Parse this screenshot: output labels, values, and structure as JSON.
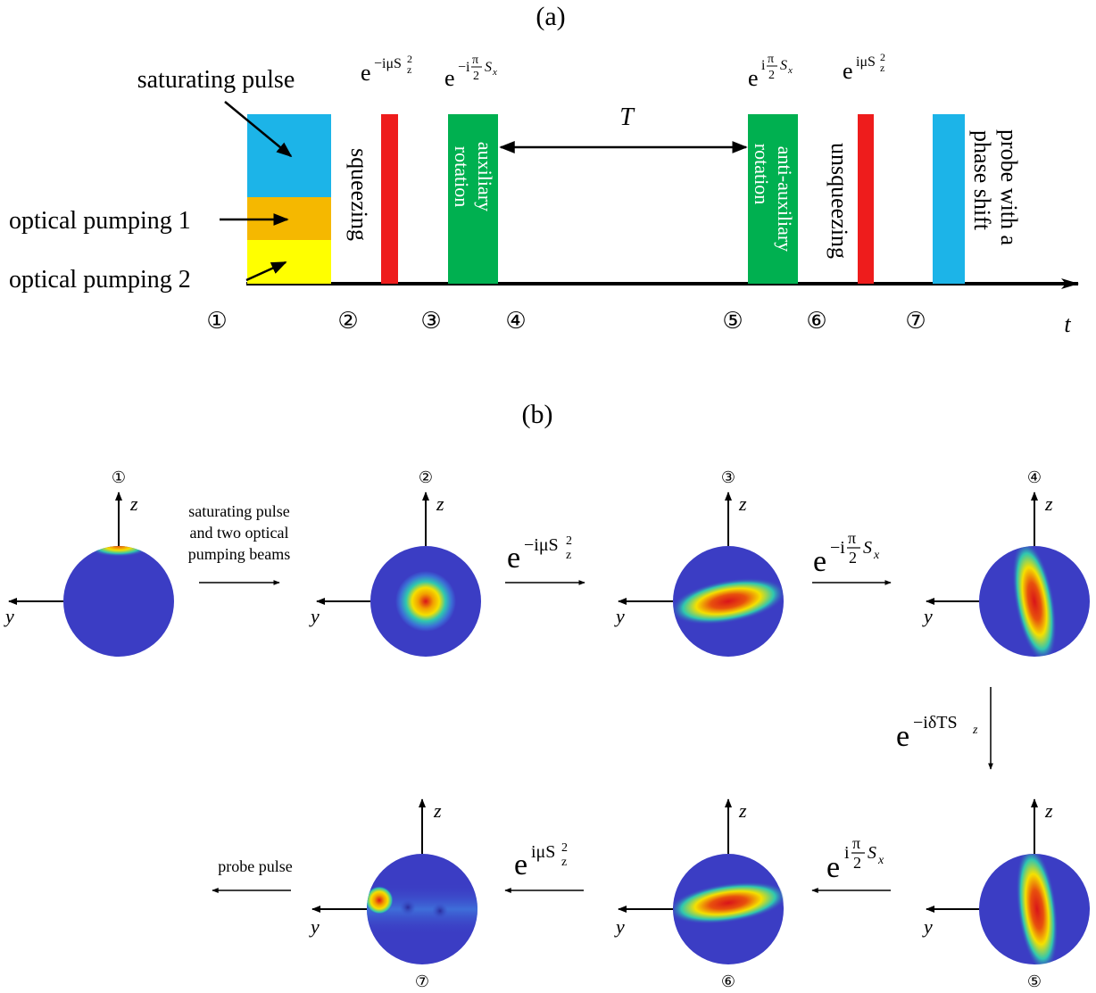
{
  "panel_a": {
    "label": "(a)",
    "time_axis_label": "t",
    "interval_label": "T",
    "annotations": {
      "saturating": "saturating pulse",
      "pumping1": "optical pumping 1",
      "pumping2": "optical pumping 2"
    },
    "pulses": {
      "squeezing": "squeezing",
      "aux_line1": "auxiliary",
      "aux_line2": "rotation",
      "anti_line1": "anti-auxiliary",
      "anti_line2": "rotation",
      "unsqueezing": "unsqueezing",
      "probe_line1": "probe with a",
      "probe_line2": "phase shift"
    },
    "operators": {
      "squeeze": {
        "base": "e",
        "exp": "−iμS",
        "sup": "2",
        "sub": "z"
      },
      "aux": {
        "base": "e",
        "pre": "−i",
        "num": "π",
        "den": "2",
        "post": "S",
        "sub": "x"
      },
      "anti_aux": {
        "base": "e",
        "pre": "i",
        "num": "π",
        "den": "2",
        "post": "S",
        "sub": "x"
      },
      "unsqueeze": {
        "base": "e",
        "exp": "iμS",
        "sup": "2",
        "sub": "z"
      }
    },
    "steps": [
      "①",
      "②",
      "③",
      "④",
      "⑤",
      "⑥",
      "⑦"
    ],
    "colors": {
      "saturating": "#1cb4e8",
      "pump1": "#f5b800",
      "pump2": "#ffff00",
      "squeeze": "#ee1c1c",
      "rotation": "#00b050",
      "probe": "#1cb4e8"
    }
  },
  "panel_b": {
    "label": "(b)",
    "axis_z": "z",
    "axis_y": "y",
    "sphere_labels": [
      "①",
      "②",
      "③",
      "④",
      "⑤",
      "⑥",
      "⑦"
    ],
    "transition_saturating": [
      "saturating pulse",
      "and two optical",
      "pumping beams"
    ],
    "probe_pulse": "probe pulse",
    "op_squeeze": {
      "base": "e",
      "exp": "−iμS",
      "sup": "2",
      "sub": "z"
    },
    "op_aux": {
      "base": "e",
      "pre": "−i",
      "num": "π",
      "den": "2",
      "post": "S",
      "sub": "x"
    },
    "op_phase": {
      "base": "e",
      "exp": "−iδTS",
      "sub": "z"
    },
    "op_anti_aux": {
      "base": "e",
      "pre": "i",
      "num": "π",
      "den": "2",
      "post": "S",
      "sub": "x"
    },
    "op_unsqueeze": {
      "base": "e",
      "exp": "iμS",
      "sup": "2",
      "sub": "z"
    },
    "colors": {
      "sphere_base": "#3b3dc4",
      "hot": "#d9141a",
      "warm": "#f5e000",
      "cool": "#2fc7b0"
    }
  }
}
